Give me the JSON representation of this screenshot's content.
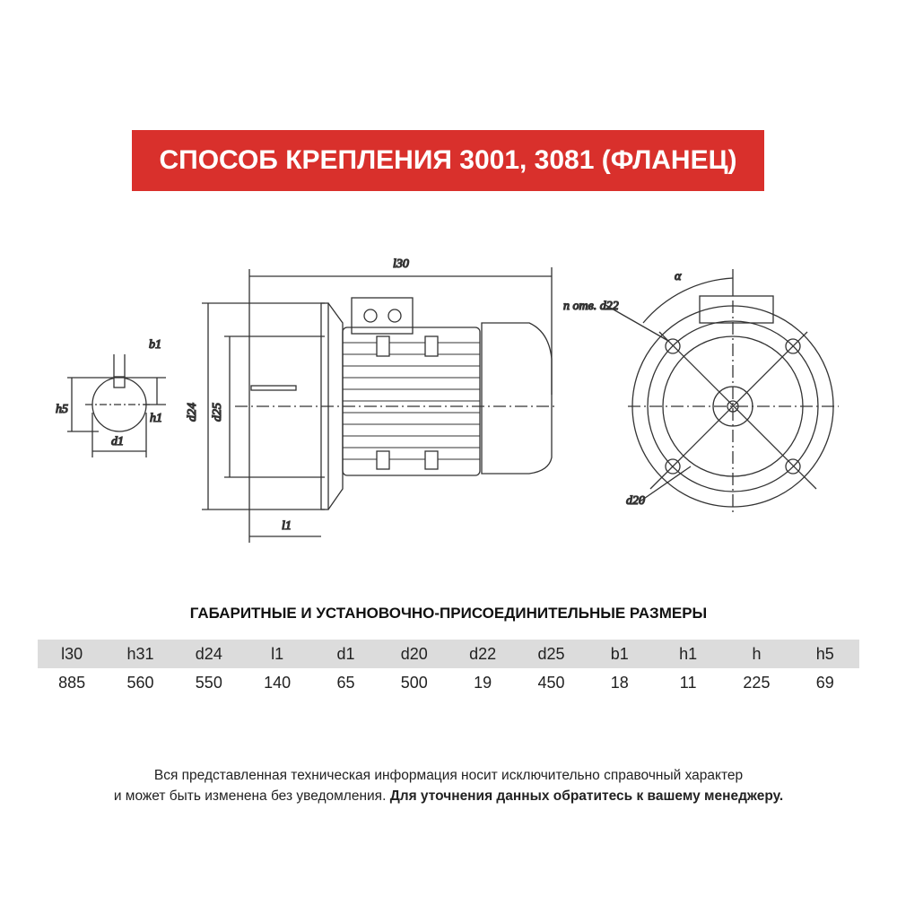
{
  "title": "СПОСОБ КРЕПЛЕНИЯ 3001, 3081 (ФЛАНЕЦ)",
  "drawing": {
    "labels": {
      "l30": "l30",
      "d24": "d24",
      "d25": "d25",
      "l1": "l1",
      "b1": "b1",
      "h5": "h5",
      "h1": "h1",
      "d1": "d1",
      "holes": "n отв. d22",
      "alpha": "α",
      "d20": "d20"
    }
  },
  "table": {
    "subtitle": "ГАБАРИТНЫЕ И УСТАНОВОЧНО-ПРИСОЕДИНИТЕЛЬНЫЕ РАЗМЕРЫ",
    "headers": [
      "l30",
      "h31",
      "d24",
      "l1",
      "d1",
      "d20",
      "d22",
      "d25",
      "b1",
      "h1",
      "h",
      "h5"
    ],
    "values": [
      "885",
      "560",
      "550",
      "140",
      "65",
      "500",
      "19",
      "450",
      "18",
      "11",
      "225",
      "69"
    ]
  },
  "note": {
    "line1": "Вся представленная техническая информация носит исключительно справочный характер",
    "line2": "и может быть изменена без уведомления.",
    "line2_bold": "Для уточнения данных обратитесь к вашему менеджеру."
  }
}
